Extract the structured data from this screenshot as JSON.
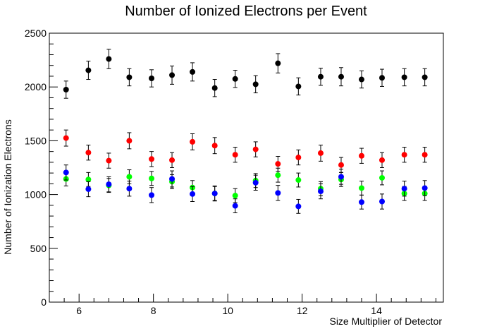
{
  "chart_data": {
    "type": "scatter",
    "title": "Number of Ionized Electrons per Event",
    "xlabel": "Size Multiplier of Detector",
    "ylabel": "Number of Ionization Electrons",
    "xlim": [
      5.2,
      15.8
    ],
    "ylim": [
      0,
      2500
    ],
    "x_ticks": [
      6,
      8,
      10,
      12,
      14
    ],
    "y_ticks": [
      0,
      500,
      1000,
      1500,
      2000,
      2500
    ],
    "grid": false,
    "x": [
      5.65,
      6.25,
      6.8,
      7.35,
      7.95,
      8.5,
      9.05,
      9.65,
      10.2,
      10.75,
      11.35,
      11.9,
      12.5,
      13.05,
      13.6,
      14.15,
      14.75,
      15.3
    ],
    "series": [
      {
        "color": "#000000",
        "values": [
          1975,
          2155,
          2260,
          2090,
          2080,
          2110,
          2140,
          1990,
          2075,
          2025,
          2220,
          2005,
          2095,
          2095,
          2070,
          2085,
          2090,
          2090
        ],
        "errors": [
          80,
          85,
          90,
          80,
          80,
          85,
          85,
          80,
          80,
          80,
          90,
          80,
          80,
          85,
          80,
          80,
          80,
          80
        ]
      },
      {
        "color": "#ff0000",
        "values": [
          1525,
          1390,
          1315,
          1500,
          1330,
          1320,
          1490,
          1455,
          1370,
          1420,
          1285,
          1345,
          1385,
          1275,
          1360,
          1320,
          1370,
          1370
        ],
        "errors": [
          75,
          70,
          70,
          75,
          70,
          70,
          75,
          75,
          70,
          70,
          70,
          70,
          75,
          70,
          70,
          70,
          70,
          70
        ]
      },
      {
        "color": "#00ff00",
        "values": [
          1145,
          1140,
          1085,
          1165,
          1150,
          1120,
          1065,
          1010,
          990,
          1130,
          1180,
          1135,
          1055,
          1140,
          1060,
          1155,
          1010,
          1010
        ],
        "errors": [
          65,
          65,
          65,
          65,
          65,
          65,
          65,
          65,
          65,
          65,
          65,
          65,
          65,
          65,
          65,
          65,
          65,
          65
        ]
      },
      {
        "color": "#0000ff",
        "values": [
          1205,
          1050,
          1095,
          1055,
          995,
          1145,
          1005,
          1010,
          895,
          1110,
          1015,
          890,
          1030,
          1165,
          930,
          935,
          1055,
          1060
        ],
        "errors": [
          70,
          70,
          70,
          70,
          70,
          75,
          70,
          70,
          65,
          70,
          70,
          65,
          70,
          70,
          65,
          70,
          70,
          70
        ]
      }
    ]
  }
}
